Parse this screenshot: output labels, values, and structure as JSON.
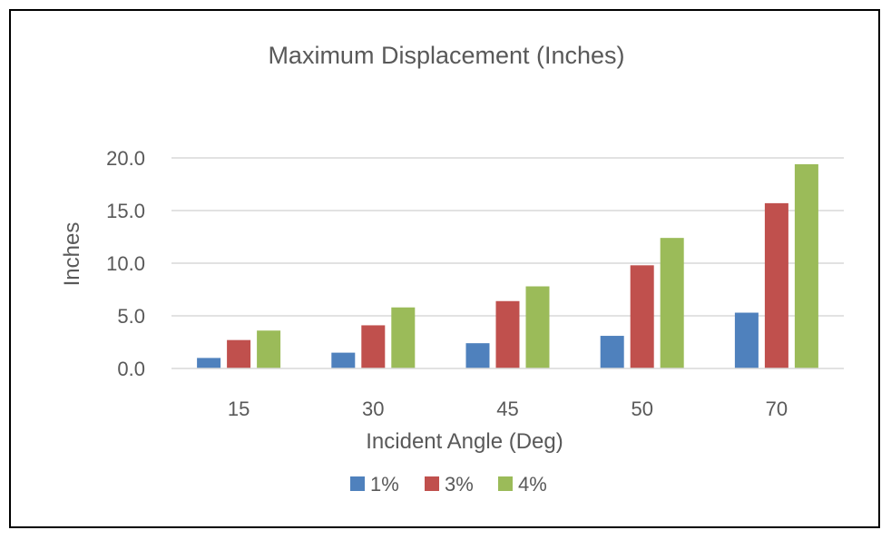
{
  "chart_data": {
    "type": "bar",
    "title": "Maximum Displacement (Inches)",
    "xlabel": "Incident Angle (Deg)",
    "ylabel": "Inches",
    "categories": [
      "15",
      "30",
      "45",
      "50",
      "70"
    ],
    "series": [
      {
        "name": "1%",
        "color": "#4F81BD",
        "values": [
          1.0,
          1.5,
          2.4,
          3.1,
          5.3
        ]
      },
      {
        "name": "3%",
        "color": "#C0504D",
        "values": [
          2.7,
          4.1,
          6.4,
          9.8,
          15.7
        ]
      },
      {
        "name": "4%",
        "color": "#9BBB59",
        "values": [
          3.6,
          5.8,
          7.8,
          12.4,
          19.4
        ]
      }
    ],
    "ylim": [
      0,
      20
    ],
    "yticks": [
      "0.0",
      "5.0",
      "10.0",
      "15.0",
      "20.0"
    ],
    "grid": true,
    "legend_position": "bottom"
  }
}
